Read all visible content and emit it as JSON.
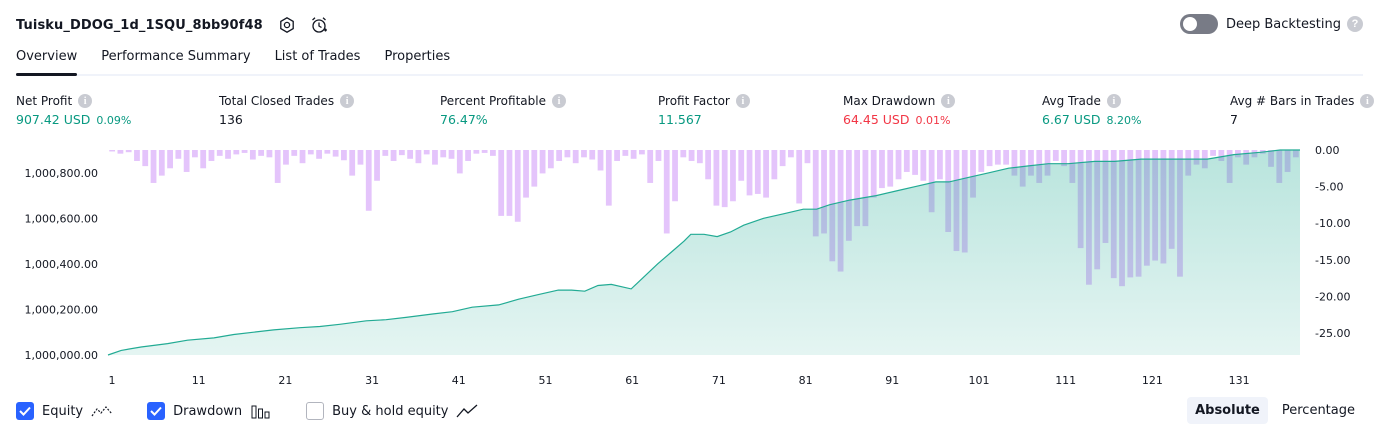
{
  "header": {
    "title": "Tuisku_DDOG_1d_1SQU_8bb90f48",
    "icons": [
      "settings-icon",
      "alert-clock-icon"
    ]
  },
  "deep_backtesting": {
    "label": "Deep Backtesting",
    "enabled": false
  },
  "tabs": [
    {
      "label": "Overview",
      "active": true
    },
    {
      "label": "Performance Summary",
      "active": false
    },
    {
      "label": "List of Trades",
      "active": false
    },
    {
      "label": "Properties",
      "active": false
    }
  ],
  "metrics": [
    {
      "label": "Net Profit",
      "value": "907.42 USD",
      "pct": "0.09%",
      "color": "#089981"
    },
    {
      "label": "Total Closed Trades",
      "value": "136",
      "pct": "",
      "color": "#131722"
    },
    {
      "label": "Percent Profitable",
      "value": "76.47%",
      "pct": "",
      "color": "#089981"
    },
    {
      "label": "Profit Factor",
      "value": "11.567",
      "pct": "",
      "color": "#089981"
    },
    {
      "label": "Max Drawdown",
      "value": "64.45 USD",
      "pct": "0.01%",
      "color": "#f23645"
    },
    {
      "label": "Avg Trade",
      "value": "6.67 USD",
      "pct": "8.20%",
      "color": "#089981"
    },
    {
      "label": "Avg # Bars in Trades",
      "value": "7",
      "pct": "",
      "color": "#131722"
    }
  ],
  "chart_data": {
    "type": "area",
    "x_ticks": [
      "1",
      "11",
      "21",
      "31",
      "41",
      "51",
      "61",
      "71",
      "81",
      "91",
      "101",
      "111",
      "121",
      "131"
    ],
    "y_left_ticks": [
      "1,000,000.00",
      "1,000,200.00",
      "1,000,400.00",
      "1,000,600.00",
      "1,000,800.00"
    ],
    "y_left_range": [
      1000000,
      1000900
    ],
    "y_right_ticks": [
      "0.00",
      "-5.00",
      "-10.00",
      "-15.00",
      "-20.00",
      "-25.00"
    ],
    "y_right_range": [
      -28,
      0
    ],
    "equity_color": "#22ab94",
    "drawdown_color": "#ce93f8",
    "equity_points": [
      [
        1,
        1000000
      ],
      [
        3,
        1000020
      ],
      [
        6,
        1000035
      ],
      [
        10,
        1000050
      ],
      [
        13,
        1000065
      ],
      [
        17,
        1000075
      ],
      [
        20,
        1000090
      ],
      [
        23,
        1000100
      ],
      [
        26,
        1000110
      ],
      [
        30,
        1000120
      ],
      [
        33,
        1000125
      ],
      [
        36,
        1000135
      ],
      [
        40,
        1000150
      ],
      [
        43,
        1000155
      ],
      [
        46,
        1000165
      ],
      [
        50,
        1000180
      ],
      [
        53,
        1000190
      ],
      [
        56,
        1000210
      ],
      [
        60,
        1000220
      ],
      [
        63,
        1000245
      ],
      [
        66,
        1000265
      ],
      [
        69,
        1000285
      ],
      [
        71,
        1000285
      ],
      [
        73,
        1000280
      ],
      [
        75,
        1000305
      ],
      [
        77,
        1000310
      ],
      [
        80,
        1000290
      ],
      [
        84,
        1000400
      ],
      [
        86,
        1000450
      ],
      [
        88,
        1000500
      ],
      [
        89,
        1000530
      ],
      [
        91,
        1000530
      ],
      [
        93,
        1000520
      ],
      [
        95,
        1000540
      ],
      [
        97,
        1000570
      ],
      [
        100,
        1000600
      ],
      [
        103,
        1000620
      ],
      [
        106,
        1000640
      ],
      [
        108,
        1000640
      ],
      [
        110,
        1000660
      ],
      [
        113,
        1000680
      ],
      [
        117,
        1000700
      ],
      [
        120,
        1000720
      ],
      [
        123,
        1000740
      ],
      [
        126,
        1000760
      ],
      [
        128,
        1000760
      ],
      [
        131,
        1000780
      ],
      [
        134,
        1000800
      ],
      [
        137,
        1000820
      ],
      [
        140,
        1000830
      ],
      [
        143,
        1000840
      ],
      [
        146,
        1000840
      ],
      [
        150,
        1000850
      ],
      [
        153,
        1000850
      ],
      [
        157,
        1000860
      ],
      [
        160,
        1000860
      ],
      [
        164,
        1000860
      ],
      [
        167,
        1000860
      ],
      [
        171,
        1000880
      ],
      [
        175,
        1000890
      ],
      [
        178,
        1000900
      ],
      [
        181,
        1000900
      ]
    ],
    "drawdown_values": [
      -0.2,
      -0.5,
      -0.3,
      -1.5,
      -2.2,
      -4.5,
      -3.5,
      -2.5,
      -1.2,
      -3.0,
      -1.0,
      -2.5,
      -1.5,
      -0.8,
      -1.2,
      -0.6,
      -0.4,
      -1.3,
      -0.8,
      -1.0,
      -4.5,
      -2.0,
      -0.8,
      -1.8,
      -0.6,
      -1.2,
      -0.5,
      -0.9,
      -1.4,
      -3.5,
      -2.0,
      -8.3,
      -4.2,
      -0.8,
      -1.5,
      -0.7,
      -1.2,
      -1.8,
      -0.6,
      -2.0,
      -1.0,
      -1.2,
      -3.2,
      -1.5,
      -0.5,
      -0.4,
      -0.8,
      -9.0,
      -9.0,
      -9.8,
      -6.5,
      -5.0,
      -3.2,
      -2.5,
      -1.5,
      -1.0,
      -1.8,
      -1.0,
      -1.3,
      -2.8,
      -7.6,
      -1.5,
      -0.8,
      -1.2,
      -0.6,
      -4.5,
      -1.5,
      -11.4,
      -7.0,
      -1.0,
      -1.5,
      -1.8,
      -4.0,
      -7.6,
      -7.8,
      -7.0,
      -4.2,
      -6.2,
      -6.0,
      -6.5,
      -4.0,
      -2.2,
      -1.0,
      -7.3,
      -1.8,
      -11.8,
      -11.4,
      -15.2,
      -16.6,
      -12.4,
      -10.4,
      -10.4,
      -6.5,
      -5.2,
      -5.0,
      -4.0,
      -3.0,
      -3.4,
      -4.2,
      -8.5,
      -4.0,
      -11.2,
      -13.8,
      -14.0,
      -6.5,
      -3.0,
      -2.2,
      -2.0,
      -2.0,
      -3.5,
      -5.0,
      -3.5,
      -4.5,
      -3.5,
      -1.5,
      -2.2,
      -4.5,
      -13.4,
      -18.4,
      -16.3,
      -12.7,
      -17.5,
      -18.6,
      -17.4,
      -17.3,
      -15.8,
      -15.1,
      -15.5,
      -13.5,
      -17.3,
      -3.5,
      -2.0,
      -2.5,
      -0.8,
      -1.5,
      -4.5,
      -1.0,
      -2.0,
      -1.0,
      -0.5,
      -2.3,
      -4.5,
      -3.0,
      -1.0
    ]
  },
  "legend": [
    {
      "label": "Equity",
      "checked": true,
      "icon": "equity-line-icon"
    },
    {
      "label": "Drawdown",
      "checked": true,
      "icon": "bars-icon"
    },
    {
      "label": "Buy & hold equity",
      "checked": false,
      "icon": "trend-line-icon"
    }
  ],
  "mode": {
    "options": [
      "Absolute",
      "Percentage"
    ],
    "selected": "Absolute"
  }
}
